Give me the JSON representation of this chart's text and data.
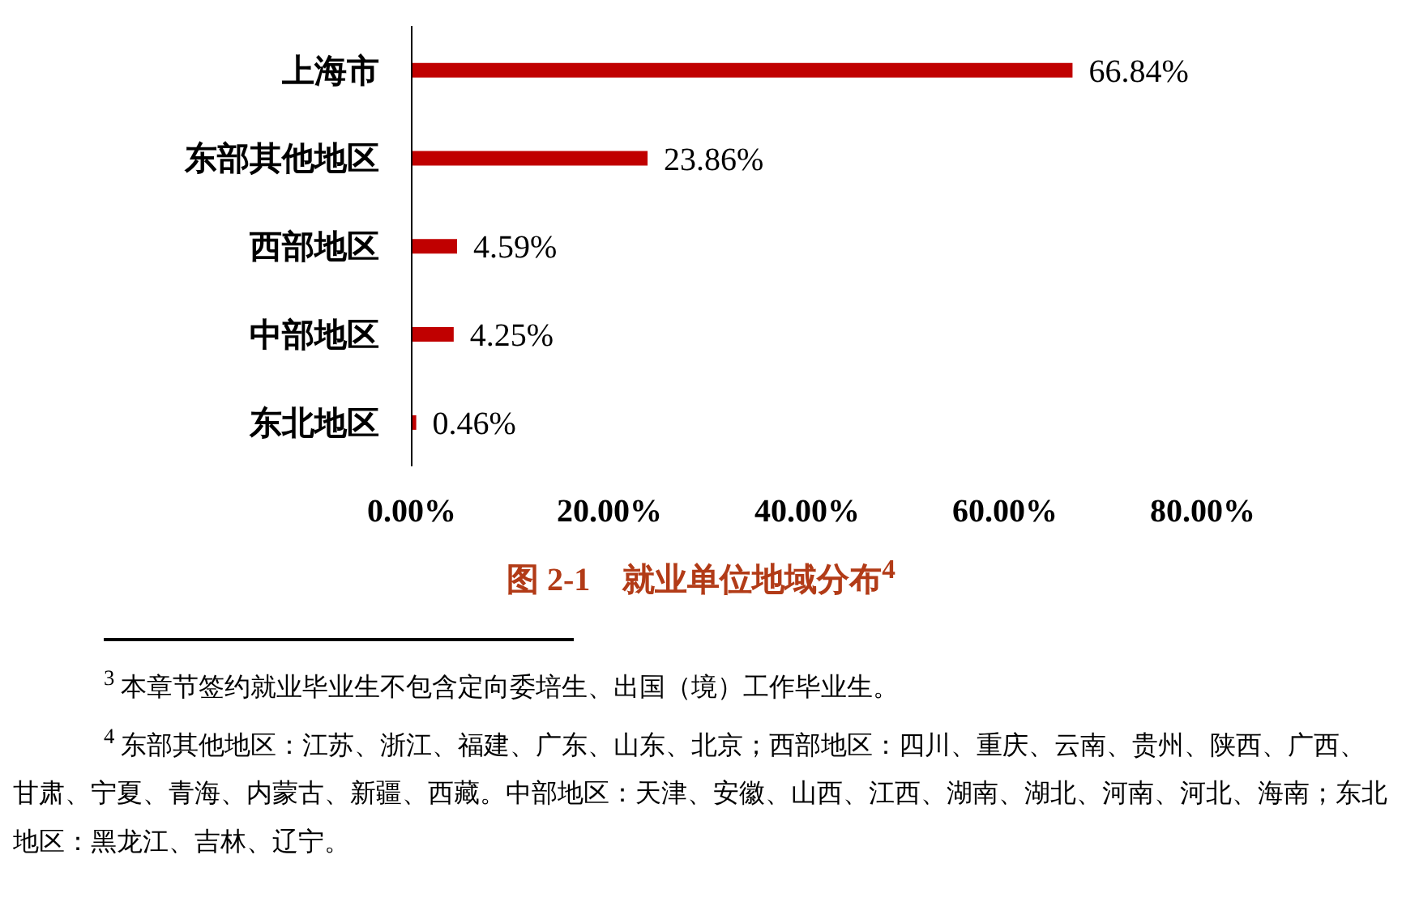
{
  "chart_data": {
    "type": "bar",
    "orientation": "horizontal",
    "title": "图 2-1　就业单位地域分布$^{4}$",
    "categories": [
      "上海市",
      "东部其他地区",
      "西部地区",
      "中部地区",
      "东北地区"
    ],
    "values": [
      66.84,
      23.86,
      4.59,
      4.25,
      0.46
    ],
    "value_labels": [
      "66.84%",
      "23.86%",
      "4.59%",
      "4.25%",
      "0.46%"
    ],
    "color": "#c00000",
    "xlim": [
      0,
      80
    ],
    "xticks": [
      {
        "value": 0,
        "label": "0.00%"
      },
      {
        "value": 20,
        "label": "20.00%"
      },
      {
        "value": 40,
        "label": "40.00%"
      },
      {
        "value": 60,
        "label": "60.00%"
      },
      {
        "value": 80,
        "label": "80.00%"
      }
    ],
    "grid": false,
    "legend": false,
    "annotations": [
      "$^{3}$ 本章节签约就业毕业生不包含定向委培生、出国（境）工作毕业生。",
      "$^{4}$ 东部其他地区：江苏、浙江、福建、广东、山东、北京；西部地区：四川、重庆、云南、贵州、陕西、广西、甘肃、宁夏、青海、内蒙古、新疆、西藏。中部地区：天津、安徽、山西、江西、湖南、湖北、河南、河北、海南；东北地区：黑龙江、吉林、辽宁。"
    ]
  }
}
